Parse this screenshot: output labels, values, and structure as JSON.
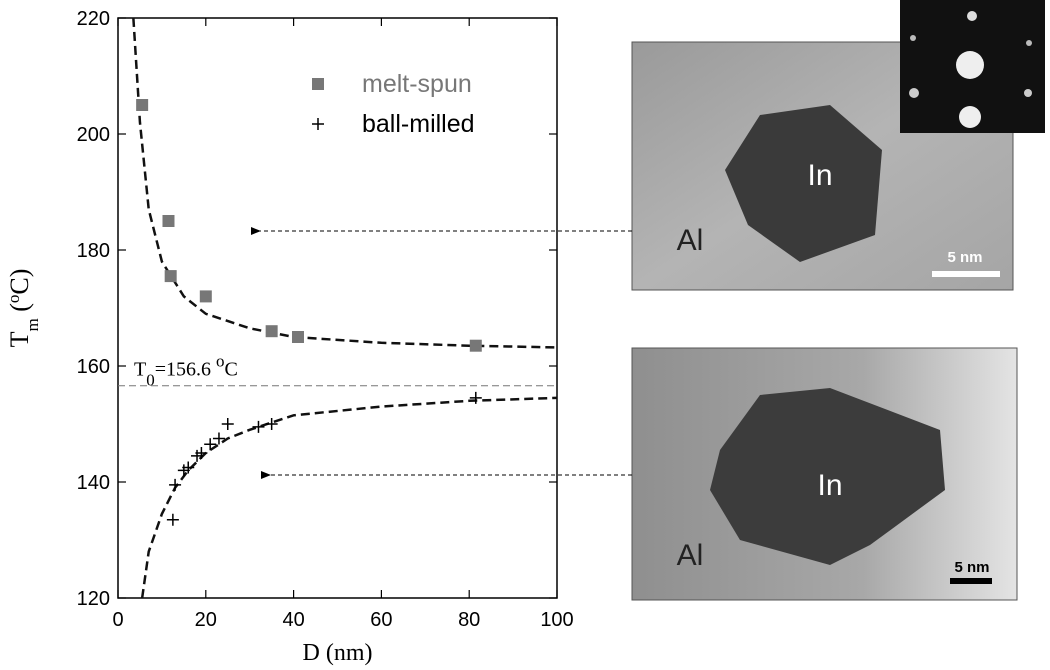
{
  "chart_data": {
    "type": "scatter",
    "x_label": "D (nm)",
    "y_label_parts": [
      "T",
      "m",
      " (",
      "o",
      "C)"
    ],
    "xlim": [
      0,
      100
    ],
    "xticks": [
      0,
      20,
      40,
      60,
      80,
      100
    ],
    "ylim": [
      120,
      220
    ],
    "yticks": [
      120,
      140,
      160,
      180,
      200,
      220
    ],
    "legend": "top",
    "series": [
      {
        "name": "melt-spun",
        "color": "#777777",
        "marker": "square",
        "x": [
          5.5,
          11.5,
          12,
          20,
          35,
          41,
          81.5
        ],
        "values": [
          205,
          185,
          175.5,
          172,
          166,
          165,
          163.5
        ]
      },
      {
        "name": "ball-milled",
        "color": "#000000",
        "marker": "plus",
        "x": [
          12.5,
          13,
          15,
          16,
          18,
          19,
          21,
          23,
          25,
          32,
          35,
          81.5
        ],
        "values": [
          133.5,
          139.5,
          142,
          142.5,
          144.5,
          145,
          146.5,
          147.5,
          150,
          149.5,
          150,
          154.5
        ]
      }
    ],
    "fits": [
      {
        "x": [
          3.5,
          5,
          7,
          10,
          15,
          20,
          30,
          40,
          60,
          80,
          100
        ],
        "values": [
          220,
          202,
          187,
          178,
          172,
          169,
          166.5,
          165,
          164,
          163.5,
          163.2
        ]
      },
      {
        "x": [
          5.5,
          7,
          10,
          13,
          16,
          20,
          25,
          30,
          40,
          60,
          80,
          100
        ],
        "values": [
          120,
          128,
          134.5,
          139,
          142,
          145,
          147.5,
          149,
          151.5,
          153,
          154,
          154.5
        ]
      }
    ],
    "reference_line": {
      "value": 156.6,
      "label_parts": [
        "T",
        "0",
        "=156.6 ",
        "o",
        "C"
      ]
    }
  },
  "images": [
    {
      "labels": [
        "In",
        "Al",
        "5 nm"
      ]
    },
    {
      "labels": [
        "In",
        "Al",
        "5 nm"
      ]
    }
  ]
}
